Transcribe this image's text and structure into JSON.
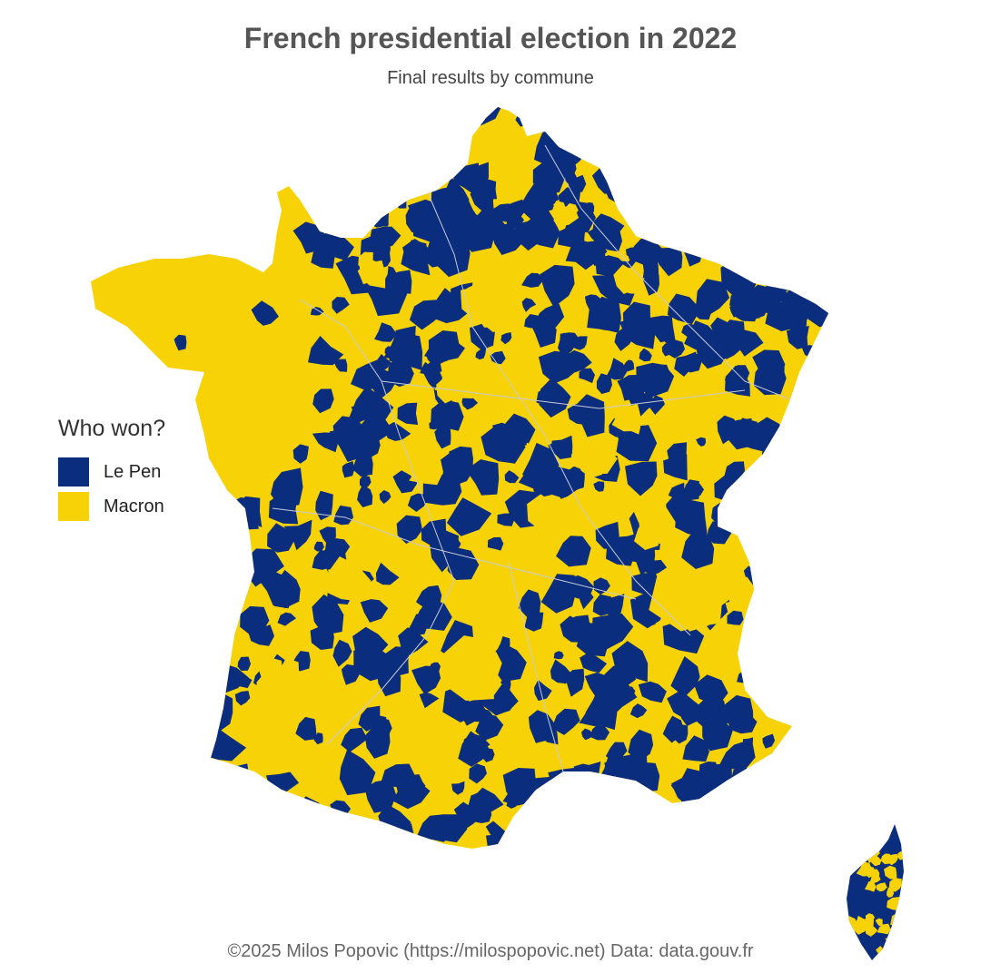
{
  "title": "French presidential election in 2022",
  "subtitle": "Final results by commune",
  "legend": {
    "title": "Who won?",
    "items": [
      {
        "label": "Le Pen",
        "color": "#0b2d7e"
      },
      {
        "label": "Macron",
        "color": "#f6d206"
      }
    ]
  },
  "credit": "©2025 Milos Popovic (https://milospopovic.net) Data: data.gouv.fr",
  "colors": {
    "le_pen": "#0b2d7e",
    "macron": "#f6d206",
    "border": "#c8cbd6",
    "background": "#ffffff"
  }
}
